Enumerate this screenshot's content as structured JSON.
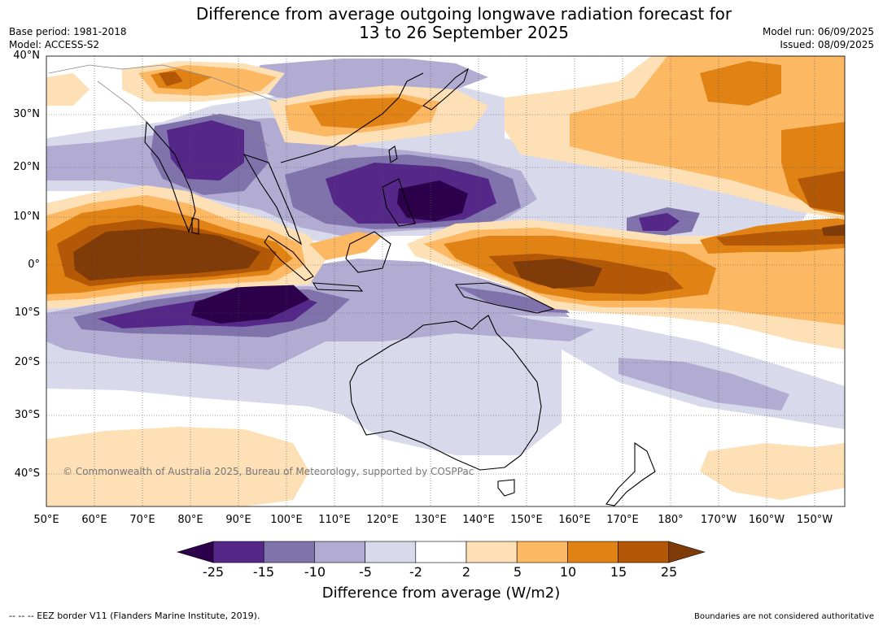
{
  "title_line1": "Difference from average outgoing longwave radiation forecast for",
  "title_line2": "13 to 26 September 2025",
  "base_period": "Base period: 1981-2018",
  "model": "Model: ACCESS-S2",
  "model_run": "Model run: 06/09/2025",
  "issued": "Issued: 08/09/2025",
  "copyright": "© Commonwealth of Australia 2025, Bureau of Meteorology, supported by COSPPac",
  "lat_labels": [
    "40°N",
    "30°N",
    "20°N",
    "10°N",
    "0°",
    "10°S",
    "20°S",
    "30°S",
    "40°S"
  ],
  "lon_labels": [
    "50°E",
    "60°E",
    "70°E",
    "80°E",
    "90°E",
    "100°E",
    "110°E",
    "120°E",
    "130°E",
    "140°E",
    "150°E",
    "160°E",
    "170°E",
    "180°",
    "170°W",
    "160°W",
    "150°W"
  ],
  "colorbar": {
    "title": "Difference from average (W/m2)",
    "ticks": [
      "-25",
      "-15",
      "-10",
      "-5",
      "-2",
      "2",
      "5",
      "10",
      "15",
      "25"
    ],
    "colors": {
      "lt_neg25": "#2d004b",
      "neg25_neg15": "#542788",
      "neg15_neg10": "#8073ac",
      "neg10_neg5": "#b2abd2",
      "neg5_neg2": "#d8daeb",
      "neg2_2": "#ffffff",
      "p2_5": "#fee0b6",
      "p5_10": "#fdb863",
      "p10_15": "#e08214",
      "p15_25": "#b35806",
      "gt25": "#7f3b08"
    }
  },
  "footer_left": "--  --  -- EEZ border V11 (Flanders Marine Institute, 2019).",
  "footer_right": "Boundaries are not considered authoritative"
}
